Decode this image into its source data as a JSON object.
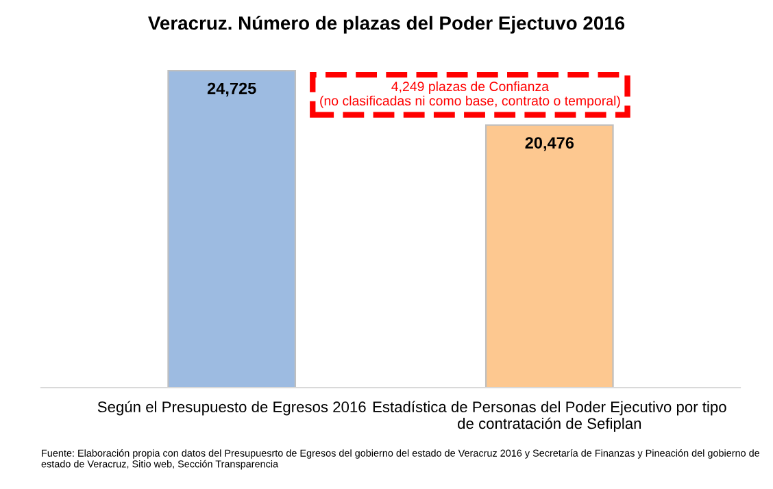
{
  "chart_data": {
    "type": "bar",
    "title": "Veracruz. Número de plazas del Poder Ejectuvo 2016",
    "categories": [
      "Según el Presupuesto de Egresos 2016",
      "Estadística de Personas del Poder Ejecutivo por tipo\nde contratación de Sefiplan"
    ],
    "values": [
      24725,
      20476
    ],
    "colors": [
      "#9dbbe1",
      "#fdc890"
    ],
    "value_labels": [
      "24,725",
      "20,476"
    ],
    "annotations": [
      "4,249 plazas de Confianza\n(no clasificadas ni como base, contrato o temporal)",
      "Fuente: Elaboración propia con datos del Presupuesrto de Egresos del gobierno del estado de Veracruz 2016 y Secretaría de Finanzas y Pineación del gobierno de\nestado de Veracruz, Sitio web, Sección Transparencia"
    ],
    "grid": false,
    "legend": false
  }
}
